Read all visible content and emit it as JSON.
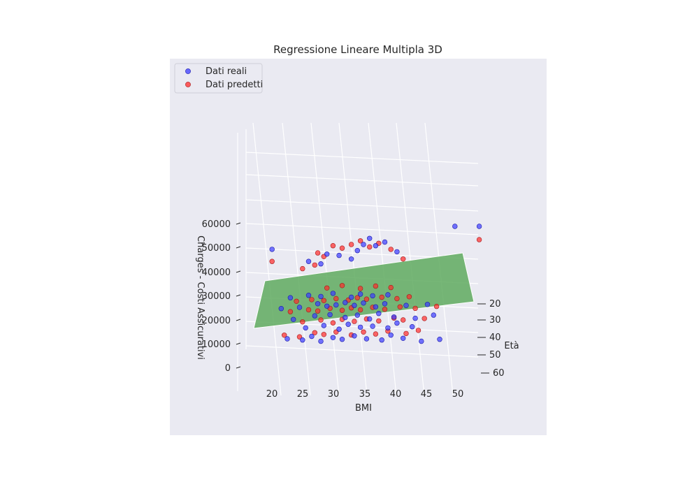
{
  "chart_data": {
    "type": "scatter",
    "title": "Regressione Lineare Multipla 3D",
    "xlabel": "BMI",
    "ylabel": "Età",
    "zlabel": "Charges - Costi Assicurativi",
    "xticks": [
      "20",
      "25",
      "30",
      "35",
      "40",
      "45",
      "50"
    ],
    "yticks": [
      "20",
      "30",
      "40",
      "50",
      "60"
    ],
    "zticks": [
      "0",
      "10000",
      "20000",
      "30000",
      "40000",
      "50000",
      "60000"
    ],
    "xlim": [
      15,
      54
    ],
    "ylim": [
      18,
      64
    ],
    "zlim": [
      0,
      65000
    ],
    "legend": {
      "placement": "top-left",
      "entries": [
        "Dati reali",
        "Dati predetti"
      ]
    },
    "series": [
      {
        "name": "Dati reali",
        "color": "#3b3bff",
        "points": [
          [
            22.0,
            1,
            13000
          ],
          [
            24.5,
            1,
            12500
          ],
          [
            26.0,
            1,
            14000
          ],
          [
            27.5,
            1,
            12000
          ],
          [
            29.5,
            1,
            13500
          ],
          [
            31.0,
            1,
            12800
          ],
          [
            33.0,
            1,
            14200
          ],
          [
            35.0,
            1,
            13000
          ],
          [
            37.5,
            1,
            12500
          ],
          [
            39.0,
            1,
            14500
          ],
          [
            41.0,
            1,
            13200
          ],
          [
            44.0,
            1,
            12000
          ],
          [
            47.0,
            1,
            12800
          ],
          [
            25.0,
            1,
            17500
          ],
          [
            28.0,
            1,
            18500
          ],
          [
            30.5,
            1,
            17000
          ],
          [
            32.0,
            1,
            19000
          ],
          [
            34.0,
            1,
            17800
          ],
          [
            36.0,
            1,
            18200
          ],
          [
            38.5,
            1,
            17500
          ],
          [
            40.0,
            1,
            19500
          ],
          [
            42.5,
            1,
            18000
          ],
          [
            23.0,
            1,
            21000
          ],
          [
            26.5,
            1,
            22500
          ],
          [
            29.0,
            1,
            23000
          ],
          [
            31.5,
            1,
            21800
          ],
          [
            33.5,
            1,
            22800
          ],
          [
            35.5,
            1,
            21200
          ],
          [
            37.0,
            1,
            23500
          ],
          [
            39.5,
            1,
            22000
          ],
          [
            43.0,
            1,
            21500
          ],
          [
            46.0,
            1,
            22800
          ],
          [
            21.0,
            1,
            25500
          ],
          [
            24.0,
            1,
            26000
          ],
          [
            27.0,
            1,
            27500
          ],
          [
            28.5,
            1,
            26500
          ],
          [
            30.0,
            1,
            27000
          ],
          [
            31.5,
            1,
            28000
          ],
          [
            33.0,
            1,
            26800
          ],
          [
            34.5,
            1,
            27800
          ],
          [
            36.5,
            1,
            26200
          ],
          [
            38.0,
            1,
            27500
          ],
          [
            41.5,
            1,
            26800
          ],
          [
            45.0,
            1,
            27200
          ],
          [
            22.5,
            1,
            30000
          ],
          [
            25.5,
            1,
            31000
          ],
          [
            27.5,
            1,
            30500
          ],
          [
            29.5,
            1,
            31800
          ],
          [
            32.5,
            1,
            30200
          ],
          [
            34.0,
            1,
            31500
          ],
          [
            36.0,
            1,
            30800
          ],
          [
            38.5,
            1,
            31200
          ],
          [
            25.5,
            1,
            45000
          ],
          [
            27.5,
            1,
            44000
          ],
          [
            28.5,
            1,
            48000
          ],
          [
            30.5,
            1,
            47500
          ],
          [
            32.5,
            1,
            46000
          ],
          [
            33.5,
            1,
            49500
          ],
          [
            34.5,
            1,
            52000
          ],
          [
            35.5,
            1,
            54500
          ],
          [
            36.5,
            1,
            51500
          ],
          [
            38.0,
            1,
            53000
          ],
          [
            40.0,
            1,
            49000
          ],
          [
            19.5,
            1,
            50000
          ],
          [
            49.5,
            1,
            59500
          ],
          [
            53.5,
            1,
            59500
          ]
        ]
      },
      {
        "name": "Dati predetti",
        "color": "#ff2a2a",
        "points": [
          [
            21.5,
            1,
            14500
          ],
          [
            24.0,
            1,
            13800
          ],
          [
            26.5,
            1,
            15500
          ],
          [
            28.0,
            1,
            14800
          ],
          [
            30.0,
            1,
            15800
          ],
          [
            32.5,
            1,
            14600
          ],
          [
            34.5,
            1,
            15800
          ],
          [
            36.5,
            1,
            15000
          ],
          [
            38.5,
            1,
            16200
          ],
          [
            41.5,
            1,
            15200
          ],
          [
            43.5,
            1,
            16500
          ],
          [
            24.5,
            1,
            20000
          ],
          [
            27.5,
            1,
            20800
          ],
          [
            29.5,
            1,
            19600
          ],
          [
            31.0,
            1,
            21000
          ],
          [
            33.0,
            1,
            20200
          ],
          [
            35.0,
            1,
            21200
          ],
          [
            37.0,
            1,
            20400
          ],
          [
            39.5,
            1,
            21600
          ],
          [
            41.0,
            1,
            20800
          ],
          [
            44.5,
            1,
            21400
          ],
          [
            22.5,
            1,
            24200
          ],
          [
            25.5,
            1,
            25000
          ],
          [
            27.0,
            1,
            24500
          ],
          [
            29.0,
            1,
            25600
          ],
          [
            31.0,
            1,
            24800
          ],
          [
            32.5,
            1,
            25800
          ],
          [
            34.0,
            1,
            25000
          ],
          [
            36.0,
            1,
            26000
          ],
          [
            38.0,
            1,
            25200
          ],
          [
            40.5,
            1,
            26200
          ],
          [
            43.0,
            1,
            25600
          ],
          [
            46.5,
            1,
            26400
          ],
          [
            23.5,
            1,
            28500
          ],
          [
            26.0,
            1,
            29200
          ],
          [
            28.0,
            1,
            28800
          ],
          [
            30.0,
            1,
            29600
          ],
          [
            32.0,
            1,
            29000
          ],
          [
            33.5,
            1,
            30000
          ],
          [
            35.0,
            1,
            29400
          ],
          [
            37.5,
            1,
            30200
          ],
          [
            40.0,
            1,
            29600
          ],
          [
            42.0,
            1,
            30400
          ],
          [
            28.5,
            1,
            34000
          ],
          [
            31.0,
            1,
            35000
          ],
          [
            34.0,
            1,
            33800
          ],
          [
            36.5,
            1,
            34800
          ],
          [
            39.0,
            1,
            34200
          ],
          [
            24.5,
            1,
            42000
          ],
          [
            26.5,
            1,
            43500
          ],
          [
            27.0,
            1,
            48500
          ],
          [
            28.0,
            1,
            47000
          ],
          [
            29.5,
            1,
            51500
          ],
          [
            31.0,
            1,
            50500
          ],
          [
            32.5,
            1,
            52000
          ],
          [
            34.0,
            1,
            53500
          ],
          [
            35.5,
            1,
            51000
          ],
          [
            37.0,
            1,
            52500
          ],
          [
            39.0,
            1,
            50000
          ],
          [
            41.0,
            1,
            46000
          ],
          [
            19.5,
            1,
            45000
          ],
          [
            53.5,
            1,
            54000
          ]
        ]
      },
      {
        "name": "",
        "color": "#5faa5f",
        "surface": {
          "x_range": [
            16,
            54
          ],
          "y_range": [
            18,
            64
          ]
        }
      }
    ],
    "grid": true
  }
}
